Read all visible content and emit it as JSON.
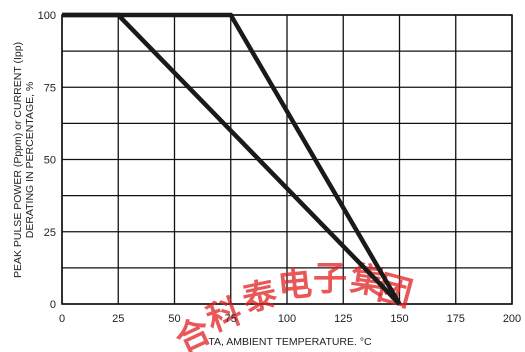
{
  "chart_data": {
    "type": "line",
    "title": "",
    "xlabel": "TA, AMBIENT TEMPERATURE. °C",
    "ylabel_lines": [
      "PEAK PULSE POWER (Pppm) or CURRENT (Ipp)",
      "DERATING IN PERCENTAGE, %"
    ],
    "xlim": [
      0,
      200
    ],
    "ylim": [
      0,
      100
    ],
    "x_ticks": [
      0,
      25,
      50,
      75,
      100,
      125,
      150,
      175,
      200
    ],
    "y_ticks": [
      0,
      25,
      50,
      75,
      100
    ],
    "x_grid_step": 25,
    "y_grid_step": 12.5,
    "grid": true,
    "legend": "none",
    "series": [
      {
        "x": [
          0,
          75,
          150
        ],
        "y": [
          100,
          100,
          0
        ]
      },
      {
        "x": [
          0,
          25,
          150
        ],
        "y": [
          100,
          100,
          0
        ]
      }
    ],
    "colors": {
      "line": "#1a1a1a",
      "grid": "#111111",
      "text": "#222222"
    }
  },
  "watermark": {
    "text": "合 科 泰 电 子 集 团",
    "color": "#e02020"
  }
}
